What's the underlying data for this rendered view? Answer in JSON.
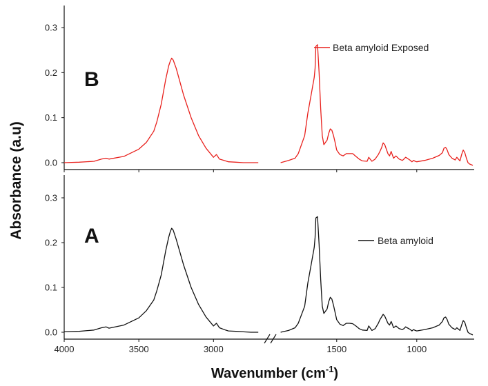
{
  "chart_data": [
    {
      "type": "line",
      "panel_label": "B",
      "legend_position": "top-right",
      "series": [
        {
          "name": "Beta amyloid Exposed",
          "color": "#e8201c",
          "x": [
            4000,
            3900,
            3800,
            3750,
            3720,
            3700,
            3600,
            3500,
            3450,
            3400,
            3380,
            3350,
            3320,
            3300,
            3290,
            3280,
            3270,
            3250,
            3200,
            3150,
            3100,
            3050,
            3000,
            2980,
            2960,
            2920,
            2900,
            2850,
            2800,
            2750,
            2700,
            1850,
            1800,
            1760,
            1740,
            1700,
            1680,
            1660,
            1650,
            1645,
            1640,
            1635,
            1630,
            1620,
            1610,
            1600,
            1590,
            1580,
            1560,
            1550,
            1540,
            1530,
            1520,
            1510,
            1500,
            1480,
            1460,
            1440,
            1420,
            1400,
            1380,
            1360,
            1340,
            1310,
            1300,
            1280,
            1260,
            1240,
            1230,
            1220,
            1210,
            1200,
            1190,
            1180,
            1170,
            1160,
            1155,
            1145,
            1130,
            1110,
            1090,
            1080,
            1070,
            1060,
            1040,
            1030,
            1020,
            1010,
            1000,
            950,
            900,
            860,
            840,
            830,
            820,
            810,
            800,
            780,
            760,
            750,
            730,
            720,
            710,
            700,
            690,
            680,
            670,
            650
          ],
          "values": [
            0.0,
            0.001,
            0.003,
            0.008,
            0.01,
            0.008,
            0.014,
            0.03,
            0.045,
            0.07,
            0.09,
            0.13,
            0.185,
            0.215,
            0.225,
            0.232,
            0.228,
            0.21,
            0.15,
            0.1,
            0.06,
            0.032,
            0.012,
            0.018,
            0.008,
            0.004,
            0.002,
            0.001,
            0.0,
            0.0,
            0.0,
            0.0,
            0.005,
            0.01,
            0.02,
            0.06,
            0.11,
            0.15,
            0.17,
            0.18,
            0.19,
            0.21,
            0.258,
            0.262,
            0.2,
            0.12,
            0.06,
            0.04,
            0.05,
            0.065,
            0.075,
            0.072,
            0.06,
            0.045,
            0.028,
            0.018,
            0.015,
            0.02,
            0.02,
            0.02,
            0.014,
            0.008,
            0.004,
            0.003,
            0.012,
            0.003,
            0.008,
            0.018,
            0.025,
            0.033,
            0.044,
            0.04,
            0.03,
            0.02,
            0.015,
            0.025,
            0.02,
            0.01,
            0.015,
            0.008,
            0.005,
            0.008,
            0.012,
            0.01,
            0.005,
            0.002,
            0.005,
            0.003,
            0.002,
            0.005,
            0.01,
            0.016,
            0.022,
            0.032,
            0.034,
            0.028,
            0.018,
            0.01,
            0.006,
            0.012,
            0.004,
            0.018,
            0.028,
            0.022,
            0.01,
            0.0,
            -0.003,
            -0.006
          ]
        }
      ],
      "xlim": [
        4000,
        650
      ],
      "ylim": [
        0,
        0.35
      ],
      "yticks": [
        0.0,
        0.1,
        0.2,
        0.3
      ],
      "ytick_labels": [
        "0.0",
        "0.1",
        "0.2",
        "0.3"
      ],
      "axis_break": [
        2650,
        1900
      ],
      "grid": false
    },
    {
      "type": "line",
      "panel_label": "A",
      "legend_position": "right",
      "series": [
        {
          "name": "Beta amyloid",
          "color": "#111111",
          "x": [
            4000,
            3900,
            3800,
            3750,
            3720,
            3700,
            3600,
            3500,
            3450,
            3400,
            3380,
            3350,
            3320,
            3300,
            3290,
            3280,
            3270,
            3250,
            3200,
            3150,
            3100,
            3050,
            3000,
            2980,
            2960,
            2920,
            2900,
            2850,
            2800,
            2750,
            2700,
            1850,
            1800,
            1760,
            1740,
            1700,
            1680,
            1660,
            1650,
            1645,
            1640,
            1635,
            1630,
            1620,
            1610,
            1600,
            1590,
            1580,
            1560,
            1550,
            1540,
            1530,
            1520,
            1510,
            1500,
            1480,
            1460,
            1440,
            1420,
            1400,
            1380,
            1360,
            1340,
            1310,
            1300,
            1280,
            1260,
            1240,
            1230,
            1220,
            1210,
            1200,
            1190,
            1180,
            1170,
            1160,
            1155,
            1145,
            1130,
            1110,
            1090,
            1080,
            1070,
            1060,
            1040,
            1030,
            1020,
            1010,
            1000,
            950,
            900,
            860,
            840,
            830,
            820,
            810,
            800,
            780,
            760,
            750,
            730,
            720,
            710,
            700,
            690,
            680,
            670,
            650
          ],
          "values": [
            0.001,
            0.002,
            0.005,
            0.01,
            0.012,
            0.009,
            0.016,
            0.032,
            0.048,
            0.072,
            0.092,
            0.128,
            0.182,
            0.212,
            0.224,
            0.232,
            0.228,
            0.208,
            0.15,
            0.1,
            0.062,
            0.034,
            0.014,
            0.02,
            0.01,
            0.005,
            0.003,
            0.002,
            0.001,
            0.0,
            0.0,
            0.0,
            0.004,
            0.01,
            0.02,
            0.058,
            0.11,
            0.15,
            0.17,
            0.18,
            0.19,
            0.212,
            0.255,
            0.258,
            0.196,
            0.118,
            0.058,
            0.042,
            0.052,
            0.068,
            0.078,
            0.074,
            0.06,
            0.044,
            0.028,
            0.018,
            0.015,
            0.02,
            0.02,
            0.019,
            0.014,
            0.008,
            0.005,
            0.004,
            0.014,
            0.004,
            0.008,
            0.02,
            0.028,
            0.034,
            0.04,
            0.036,
            0.028,
            0.02,
            0.016,
            0.024,
            0.02,
            0.01,
            0.014,
            0.008,
            0.006,
            0.008,
            0.012,
            0.01,
            0.006,
            0.003,
            0.006,
            0.004,
            0.003,
            0.006,
            0.01,
            0.016,
            0.024,
            0.032,
            0.034,
            0.028,
            0.018,
            0.01,
            0.006,
            0.01,
            0.004,
            0.016,
            0.026,
            0.022,
            0.01,
            0.0,
            -0.003,
            -0.006
          ]
        }
      ],
      "xlim": [
        4000,
        650
      ],
      "ylim": [
        0,
        0.35
      ],
      "xticks": [
        4000,
        3500,
        3000,
        1500,
        1000
      ],
      "xtick_labels": [
        "4000",
        "3500",
        "3000",
        "1500",
        "1000"
      ],
      "yticks": [
        0.0,
        0.1,
        0.2,
        0.3
      ],
      "ytick_labels": [
        "0.0",
        "0.1",
        "0.2",
        "0.3"
      ],
      "axis_break": [
        2650,
        1900
      ],
      "grid": false
    }
  ],
  "axes": {
    "ylabel": "Absorbance (a.u)",
    "xlabel_main": "Wavenumber (cm",
    "xlabel_sup": "-1",
    "xlabel_close": ")"
  }
}
